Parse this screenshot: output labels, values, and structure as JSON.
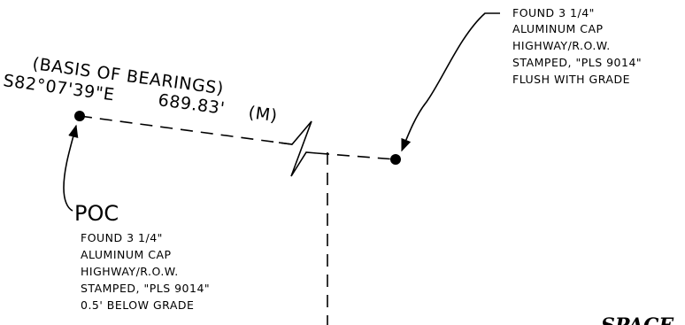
{
  "basis_of_bearings": {
    "label": "(BASIS OF BEARINGS)",
    "bearing": "S82°07'39\"E",
    "distance": "689.83'",
    "measure_tag": "(M)"
  },
  "monument_east": {
    "lines": [
      "FOUND 3 1/4\"",
      "ALUMINUM CAP",
      "HIGHWAY/R.O.W.",
      "STAMPED, \"PLS 9014\"",
      "FLUSH WITH GRADE"
    ]
  },
  "monument_poc": {
    "label": "POC",
    "lines": [
      "FOUND 3 1/4\"",
      "ALUMINUM CAP",
      "HIGHWAY/R.O.W.",
      "STAMPED, \"PLS 9014\"",
      "0.5' BELOW GRADE"
    ]
  },
  "corner_text": "SPACE"
}
